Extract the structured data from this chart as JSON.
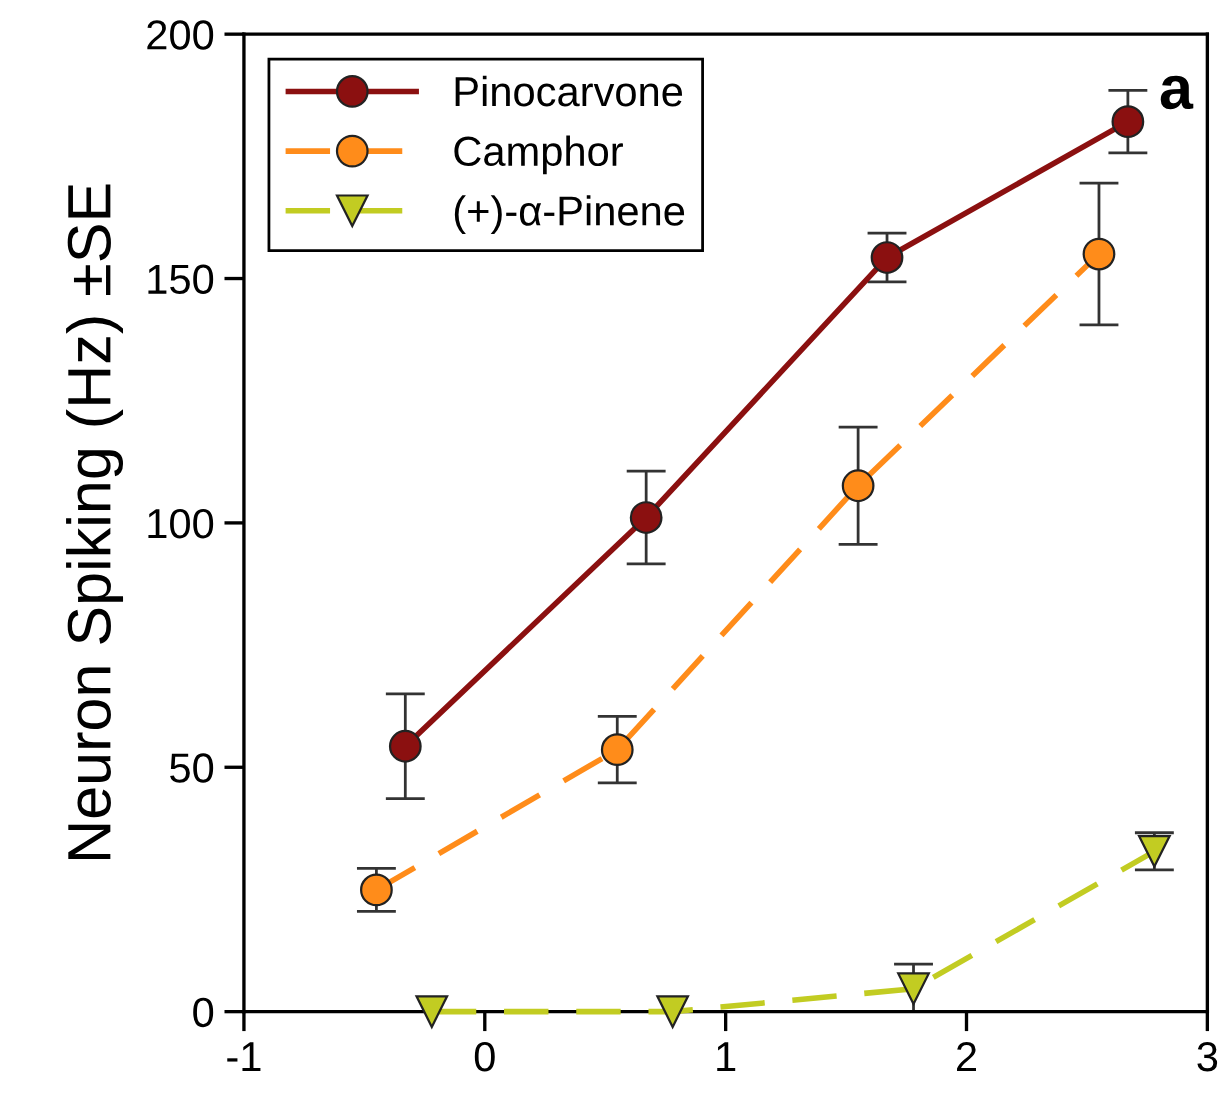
{
  "chart_data": {
    "type": "line",
    "ylabel": "Neuron Spiking (Hz) ±SE",
    "xlim": [
      -1,
      3
    ],
    "xticks": [
      -1,
      0,
      1,
      2,
      3
    ],
    "ylim": [
      0,
      200
    ],
    "yticks": [
      0,
      50,
      100,
      150,
      200
    ],
    "grid": false,
    "legend": "top left",
    "annotations": [
      "a"
    ],
    "series": [
      {
        "name": "Pinocarvone",
        "color": "#8b1010",
        "marker": "circle",
        "line_style": "solid",
        "x": [
          -0.33,
          0.67,
          1.67,
          2.67
        ],
        "values": [
          54.3,
          101.1,
          154.3,
          182.1
        ],
        "errors": [
          10.7,
          9.5,
          5,
          6.4
        ]
      },
      {
        "name": "Camphor",
        "color": "#ff8c1a",
        "marker": "circle",
        "line_style": "dashed",
        "x": [
          -0.45,
          0.55,
          1.55,
          2.55
        ],
        "values": [
          24.9,
          53.6,
          107.6,
          155
        ],
        "errors": [
          4.4,
          6.8,
          12,
          14.5
        ]
      },
      {
        "name": "(+)-α-Pinene",
        "color": "#c2cc22",
        "marker": "triangle",
        "line_style": "dashed",
        "x": [
          -0.22,
          0.78,
          1.78,
          2.78
        ],
        "values": [
          0,
          0,
          4.7,
          32.8
        ],
        "errors": [
          null,
          null,
          5,
          3.8
        ]
      }
    ]
  }
}
